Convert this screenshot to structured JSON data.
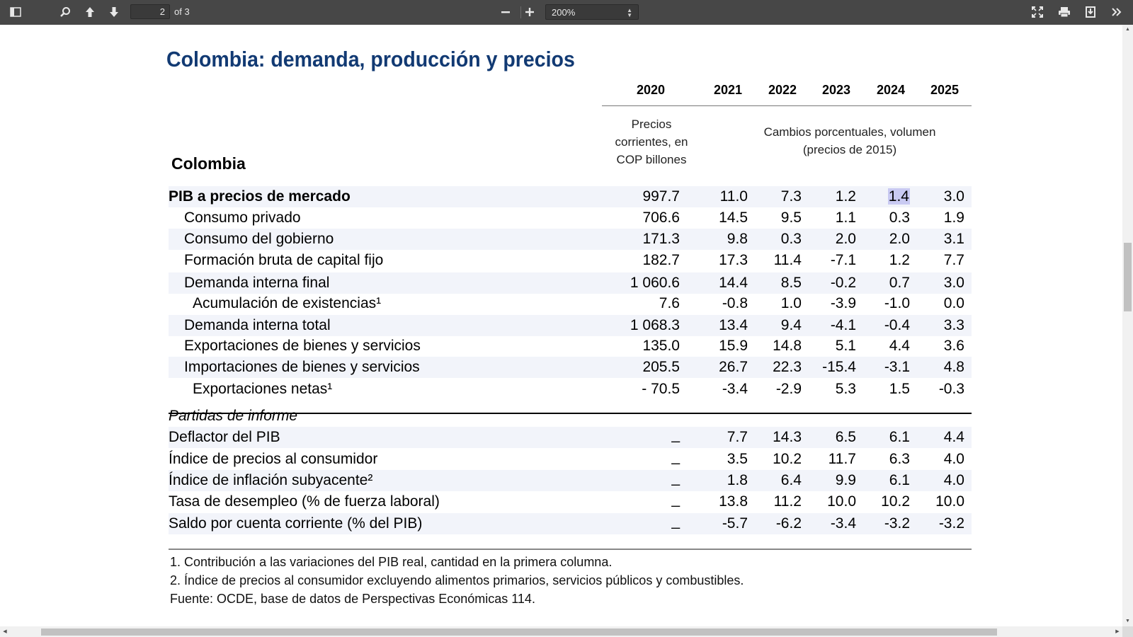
{
  "toolbar": {
    "page_current": "2",
    "page_of": "of 3",
    "zoom": "200%"
  },
  "doc": {
    "title": "Colombia: demanda, producción y precios",
    "years": [
      "2020",
      "2021",
      "2022",
      "2023",
      "2024",
      "2025"
    ],
    "first_col_header": [
      "Precios",
      "corrientes, en",
      "COP billones"
    ],
    "pct_header": [
      "Cambios porcentuales, volumen",
      "(precios de 2015)"
    ],
    "country": "Colombia",
    "rows": [
      {
        "label": "PIB a precios de mercado",
        "values": [
          "997.7",
          "11.0",
          "7.3",
          "1.2",
          "1.4",
          "3.0"
        ]
      },
      {
        "label": "Consumo privado",
        "values": [
          "706.6",
          "14.5",
          "9.5",
          "1.1",
          "0.3",
          "1.9"
        ]
      },
      {
        "label": "Consumo del gobierno",
        "values": [
          "171.3",
          "9.8",
          "0.3",
          "2.0",
          "2.0",
          "3.1"
        ]
      },
      {
        "label": "Formación bruta de capital fijo",
        "values": [
          "182.7",
          "17.3",
          "11.4",
          "-7.1",
          "1.2",
          "7.7"
        ]
      },
      {
        "label": "Demanda interna final",
        "values": [
          "1 060.6",
          "14.4",
          "8.5",
          "-0.2",
          "0.7",
          "3.0"
        ]
      },
      {
        "label": "Acumulación de existencias¹",
        "values": [
          "7.6",
          "-0.8",
          "1.0",
          "-3.9",
          "-1.0",
          "0.0"
        ]
      },
      {
        "label": "Demanda interna total",
        "values": [
          "1 068.3",
          "13.4",
          "9.4",
          "-4.1",
          "-0.4",
          "3.3"
        ]
      },
      {
        "label": "Exportaciones de bienes y servicios",
        "values": [
          "135.0",
          "15.9",
          "14.8",
          "5.1",
          "4.4",
          "3.6"
        ]
      },
      {
        "label": "Importaciones de bienes y servicios",
        "values": [
          "205.5",
          "26.7",
          "22.3",
          "-15.4",
          "-3.1",
          "4.8"
        ]
      },
      {
        "label": "Exportaciones netas¹",
        "values": [
          "- 70.5",
          "-3.4",
          "-2.9",
          "5.3",
          "1.5",
          "-0.3"
        ]
      }
    ],
    "memo_title": "Partidas de informe",
    "memo_rows": [
      {
        "label": "Deflactor del PIB",
        "values": [
          "_",
          "7.7",
          "14.3",
          "6.5",
          "6.1",
          "4.4"
        ]
      },
      {
        "label": "Índice de precios al consumidor",
        "values": [
          "_",
          "3.5",
          "10.2",
          "11.7",
          "6.3",
          "4.0"
        ]
      },
      {
        "label": "Índice de inflación subyacente²",
        "values": [
          "_",
          "1.8",
          "6.4",
          "9.9",
          "6.1",
          "4.0"
        ]
      },
      {
        "label": "Tasa de desempleo (% de fuerza laboral)",
        "values": [
          "_",
          "13.8",
          "11.2",
          "10.0",
          "10.2",
          "10.0"
        ]
      },
      {
        "label": "Saldo por cuenta corriente (% del PIB)",
        "values": [
          "_",
          "-5.7",
          "-6.2",
          "-3.4",
          "-3.2",
          "-3.2"
        ]
      }
    ],
    "footnotes": [
      "1. Contribución a las variaciones del PIB real, cantidad en la primera columna.",
      "2. Índice de precios al consumidor excluyendo alimentos primarios, servicios públicos y combustibles.",
      "Fuente: OCDE, base de datos de Perspectivas Económicas 114."
    ]
  }
}
